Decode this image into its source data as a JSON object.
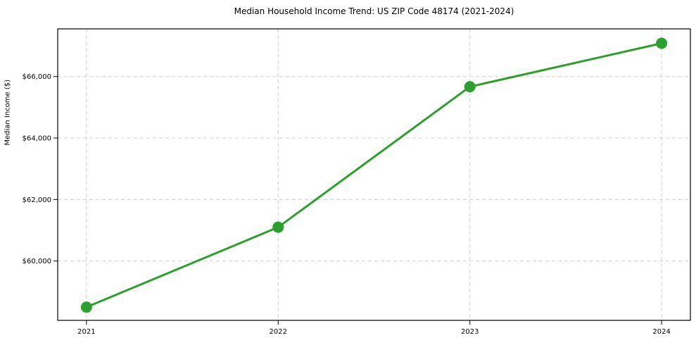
{
  "figure": {
    "background": "#ffffff"
  },
  "chart_data": {
    "type": "line",
    "title": "Median Household Income Trend: US ZIP Code 48174 (2021-2024)",
    "xlabel": "",
    "ylabel": "Median Income ($)",
    "x": [
      2021,
      2022,
      2023,
      2024
    ],
    "series": [
      {
        "name": "Median Household Income",
        "values": [
          58500,
          61100,
          65670,
          67080
        ],
        "color": "#2ca02c",
        "marker": "circle",
        "marker_radius": 8,
        "line_width": 3
      }
    ],
    "xlim": [
      2020.85,
      2024.15
    ],
    "ylim": [
      58070,
      67550
    ],
    "xticks": [
      {
        "value": 2021,
        "label": "2021"
      },
      {
        "value": 2022,
        "label": "2022"
      },
      {
        "value": 2023,
        "label": "2023"
      },
      {
        "value": 2024,
        "label": "2024"
      }
    ],
    "yticks": [
      {
        "value": 60000,
        "label": "$60,000"
      },
      {
        "value": 62000,
        "label": "$62,000"
      },
      {
        "value": 64000,
        "label": "$64,000"
      },
      {
        "value": 66000,
        "label": "$66,000"
      }
    ],
    "grid": true,
    "grid_style": "dashed",
    "grid_color": "#cfcfcf",
    "spine_color": "#000000",
    "legend": "none"
  }
}
